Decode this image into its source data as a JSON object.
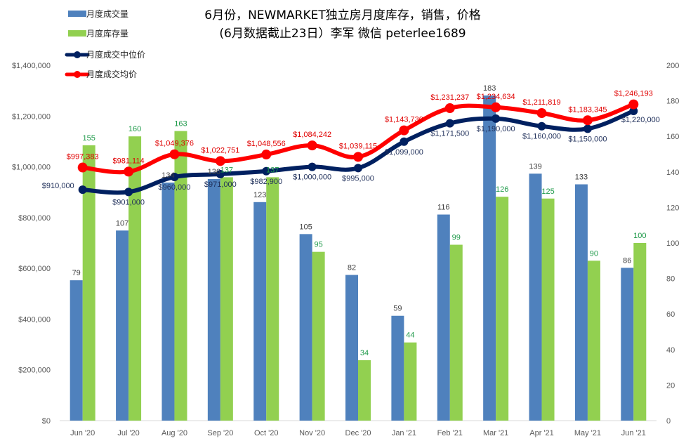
{
  "chart_data": {
    "type": "bar",
    "title_line1": "6月份，NEWMARKET独立房月度库存，销售，价格",
    "title_line2": "(6月数据截止23日）李军 微信 peterlee1689",
    "categories": [
      "Jun '20",
      "Jul '20",
      "Aug '20",
      "Sep '20",
      "Oct '20",
      "Nov '20",
      "Dec '20",
      "Jan '21",
      "Feb '21",
      "Mar '21",
      "Apr '21",
      "May '21",
      "Jun '21"
    ],
    "series": [
      {
        "name": "月度成交量",
        "kind": "bar",
        "axis": "right",
        "color": "#4f81bd",
        "values": [
          79,
          107,
          134,
          136,
          123,
          105,
          82,
          59,
          116,
          183,
          139,
          133,
          86
        ],
        "labels": [
          "79",
          "107",
          "134",
          "136",
          "123",
          "105",
          "82",
          "59",
          "116",
          "183",
          "139",
          "133",
          "86"
        ]
      },
      {
        "name": "月度库存量",
        "kind": "bar",
        "axis": "right",
        "color": "#92d050",
        "values": [
          155,
          160,
          163,
          137,
          137,
          95,
          34,
          44,
          99,
          126,
          125,
          90,
          100
        ],
        "labels": [
          "155",
          "160",
          "163",
          "137",
          "137",
          "95",
          "34",
          "44",
          "99",
          "126",
          "125",
          "90",
          "100"
        ]
      },
      {
        "name": "月度成交中位价",
        "kind": "line",
        "axis": "left",
        "color": "#002060",
        "values": [
          910000,
          901000,
          960000,
          971000,
          982900,
          1000000,
          995000,
          1099000,
          1171500,
          1190000,
          1160000,
          1150000,
          1220000
        ],
        "labels": [
          "$910,000",
          "$901,000",
          "$960,000",
          "$971,000",
          "$982,900",
          "$1,000,000",
          "$995,000",
          "$1,099,000",
          "$1,171,500",
          "$1,190,000",
          "$1,160,000",
          "$1,150,000",
          "$1,220,000"
        ]
      },
      {
        "name": "月度成交均价",
        "kind": "line",
        "axis": "left",
        "color": "#ff0000",
        "values": [
          997383,
          981114,
          1049376,
          1022751,
          1048556,
          1084242,
          1039115,
          1143730,
          1231237,
          1234634,
          1211819,
          1183345,
          1246193
        ],
        "labels": [
          "$997,383",
          "$981,114",
          "$1,049,376",
          "$1,022,751",
          "$1,048,556",
          "$1,084,242",
          "$1,039,115",
          "$1,143,730",
          "$1,231,237",
          "$1,234,634",
          "$1,211,819",
          "$1,183,345",
          "$1,246,193"
        ]
      }
    ],
    "left_axis": {
      "min": 0,
      "max": 1400000,
      "step": 200000,
      "tick_labels": [
        "$0",
        "$200,000",
        "$400,000",
        "$600,000",
        "$800,000",
        "$1,000,000",
        "$1,200,000",
        "$1,400,000"
      ]
    },
    "right_axis": {
      "min": 0,
      "max": 200,
      "step": 20,
      "tick_labels": [
        "0",
        "20",
        "40",
        "60",
        "80",
        "100",
        "120",
        "140",
        "160",
        "180",
        "200"
      ]
    },
    "grid": false,
    "legend_position": "top-left"
  }
}
